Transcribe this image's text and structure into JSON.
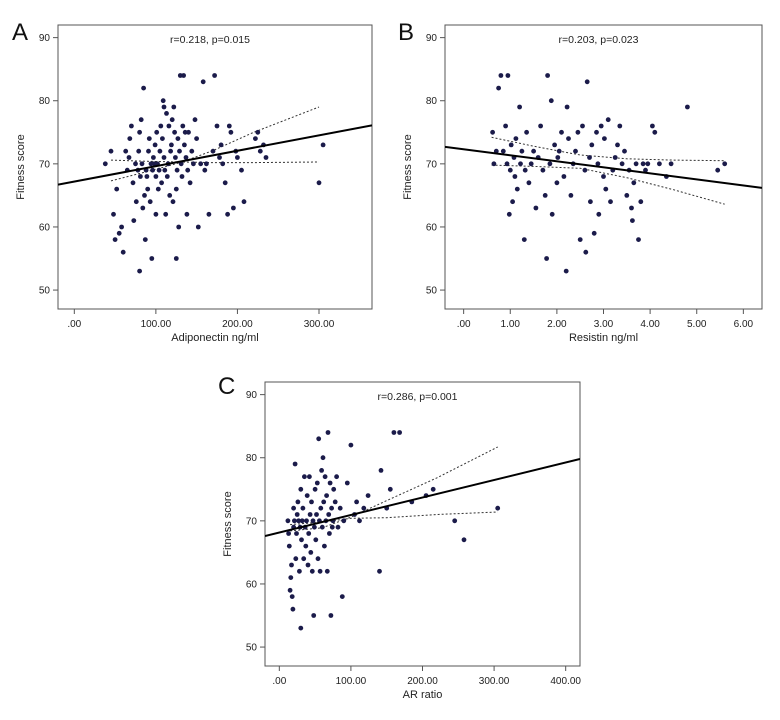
{
  "chart_data": [
    {
      "type": "scatter",
      "panel": "A",
      "title": "",
      "annotation": "r=0.218, p=0.015",
      "xlabel": "Adiponectin ng/ml",
      "ylabel": "Fitness score",
      "xlim": [
        -20,
        365
      ],
      "ylim": [
        47,
        92
      ],
      "xticks": [
        0,
        100,
        200,
        300
      ],
      "xtick_labels": [
        ".00",
        "100.00",
        "200.00",
        "300.00"
      ],
      "yticks": [
        50,
        60,
        70,
        80,
        90
      ],
      "ytick_labels": [
        "50",
        "60",
        "70",
        "80",
        "90"
      ],
      "fit_line": [
        [
          -20,
          66.7
        ],
        [
          365,
          76.1
        ]
      ],
      "ci_upper": [
        [
          45,
          67.3
        ],
        [
          90,
          68.8
        ],
        [
          130,
          70.2
        ],
        [
          170,
          72.1
        ],
        [
          220,
          75.0
        ],
        [
          300,
          79.0
        ]
      ],
      "ci_lower": [
        [
          45,
          70.6
        ],
        [
          90,
          70.4
        ],
        [
          130,
          70.3
        ],
        [
          170,
          70.2
        ],
        [
          220,
          70.2
        ],
        [
          300,
          70.3
        ]
      ],
      "points": [
        [
          38,
          70
        ],
        [
          45,
          72
        ],
        [
          48,
          62
        ],
        [
          50,
          58
        ],
        [
          52,
          66
        ],
        [
          55,
          59
        ],
        [
          58,
          60
        ],
        [
          60,
          56
        ],
        [
          63,
          72
        ],
        [
          65,
          69
        ],
        [
          67,
          71
        ],
        [
          68,
          74
        ],
        [
          70,
          76
        ],
        [
          72,
          67
        ],
        [
          73,
          61
        ],
        [
          75,
          70
        ],
        [
          76,
          64
        ],
        [
          78,
          69
        ],
        [
          79,
          72
        ],
        [
          80,
          75
        ],
        [
          80,
          53
        ],
        [
          81,
          68
        ],
        [
          82,
          77
        ],
        [
          83,
          70
        ],
        [
          84,
          63
        ],
        [
          85,
          82
        ],
        [
          86,
          65
        ],
        [
          87,
          58
        ],
        [
          88,
          69
        ],
        [
          89,
          68
        ],
        [
          90,
          66
        ],
        [
          91,
          72
        ],
        [
          92,
          74
        ],
        [
          93,
          64
        ],
        [
          94,
          70
        ],
        [
          95,
          55
        ],
        [
          96,
          69
        ],
        [
          97,
          71
        ],
        [
          98,
          70
        ],
        [
          99,
          73
        ],
        [
          100,
          62
        ],
        [
          100,
          68
        ],
        [
          101,
          75
        ],
        [
          102,
          70
        ],
        [
          103,
          66
        ],
        [
          104,
          69
        ],
        [
          105,
          72
        ],
        [
          106,
          76
        ],
        [
          107,
          67
        ],
        [
          108,
          74
        ],
        [
          109,
          80
        ],
        [
          110,
          79
        ],
        [
          110,
          71
        ],
        [
          111,
          69
        ],
        [
          112,
          62
        ],
        [
          113,
          78
        ],
        [
          114,
          68
        ],
        [
          115,
          70
        ],
        [
          116,
          76
        ],
        [
          117,
          65
        ],
        [
          118,
          72
        ],
        [
          119,
          73
        ],
        [
          120,
          77
        ],
        [
          121,
          64
        ],
        [
          122,
          79
        ],
        [
          123,
          75
        ],
        [
          124,
          71
        ],
        [
          125,
          66
        ],
        [
          125,
          55
        ],
        [
          126,
          69
        ],
        [
          127,
          74
        ],
        [
          128,
          60
        ],
        [
          129,
          72
        ],
        [
          130,
          84
        ],
        [
          131,
          70
        ],
        [
          132,
          68
        ],
        [
          133,
          76
        ],
        [
          134,
          84
        ],
        [
          135,
          73
        ],
        [
          136,
          75
        ],
        [
          137,
          71
        ],
        [
          138,
          62
        ],
        [
          139,
          69
        ],
        [
          140,
          75
        ],
        [
          142,
          67
        ],
        [
          144,
          72
        ],
        [
          146,
          70
        ],
        [
          148,
          77
        ],
        [
          150,
          74
        ],
        [
          152,
          60
        ],
        [
          155,
          70
        ],
        [
          158,
          83
        ],
        [
          160,
          69
        ],
        [
          162,
          70
        ],
        [
          165,
          62
        ],
        [
          170,
          72
        ],
        [
          172,
          84
        ],
        [
          175,
          76
        ],
        [
          178,
          71
        ],
        [
          180,
          73
        ],
        [
          182,
          70
        ],
        [
          185,
          67
        ],
        [
          188,
          62
        ],
        [
          190,
          76
        ],
        [
          192,
          75
        ],
        [
          195,
          63
        ],
        [
          198,
          72
        ],
        [
          200,
          71
        ],
        [
          205,
          69
        ],
        [
          208,
          64
        ],
        [
          222,
          74
        ],
        [
          225,
          75
        ],
        [
          228,
          72
        ],
        [
          232,
          73
        ],
        [
          235,
          71
        ],
        [
          300,
          67
        ],
        [
          305,
          73
        ]
      ]
    },
    {
      "type": "scatter",
      "panel": "B",
      "title": "",
      "annotation": "r=0.203, p=0.023",
      "xlabel": "Resistin ng/ml",
      "ylabel": "Fitness score",
      "xlim": [
        -0.4,
        6.4
      ],
      "ylim": [
        47,
        92
      ],
      "xticks": [
        0,
        1,
        2,
        3,
        4,
        5,
        6
      ],
      "xtick_labels": [
        ".00",
        "1.00",
        "2.00",
        "3.00",
        "4.00",
        "5.00",
        "6.00"
      ],
      "yticks": [
        50,
        60,
        70,
        80,
        90
      ],
      "ytick_labels": [
        "50",
        "60",
        "70",
        "80",
        "90"
      ],
      "fit_line": [
        [
          -0.4,
          72.7
        ],
        [
          6.4,
          66.2
        ]
      ],
      "ci_upper": [
        [
          0.6,
          74.2
        ],
        [
          1.5,
          72.8
        ],
        [
          2.5,
          71.4
        ],
        [
          3.5,
          70.8
        ],
        [
          4.5,
          70.6
        ],
        [
          5.6,
          70.5
        ]
      ],
      "ci_lower": [
        [
          0.6,
          69.8
        ],
        [
          1.5,
          69.6
        ],
        [
          2.5,
          69.3
        ],
        [
          3.5,
          67.8
        ],
        [
          4.5,
          65.9
        ],
        [
          5.6,
          63.6
        ]
      ],
      "points": [
        [
          0.62,
          75
        ],
        [
          0.65,
          70
        ],
        [
          0.7,
          72
        ],
        [
          0.75,
          82
        ],
        [
          0.8,
          84
        ],
        [
          0.85,
          72
        ],
        [
          0.9,
          76
        ],
        [
          0.93,
          70
        ],
        [
          0.95,
          84
        ],
        [
          0.98,
          62
        ],
        [
          1.0,
          69
        ],
        [
          1.02,
          73
        ],
        [
          1.05,
          64
        ],
        [
          1.08,
          71
        ],
        [
          1.1,
          68
        ],
        [
          1.12,
          74
        ],
        [
          1.15,
          66
        ],
        [
          1.2,
          79
        ],
        [
          1.22,
          70
        ],
        [
          1.25,
          72
        ],
        [
          1.3,
          58
        ],
        [
          1.32,
          69
        ],
        [
          1.35,
          75
        ],
        [
          1.4,
          67
        ],
        [
          1.45,
          70
        ],
        [
          1.5,
          72
        ],
        [
          1.55,
          63
        ],
        [
          1.6,
          71
        ],
        [
          1.65,
          76
        ],
        [
          1.7,
          69
        ],
        [
          1.75,
          65
        ],
        [
          1.78,
          55
        ],
        [
          1.8,
          84
        ],
        [
          1.85,
          70
        ],
        [
          1.88,
          80
        ],
        [
          1.9,
          62
        ],
        [
          1.95,
          73
        ],
        [
          2.0,
          67
        ],
        [
          2.02,
          71
        ],
        [
          2.05,
          72
        ],
        [
          2.1,
          75
        ],
        [
          2.15,
          68
        ],
        [
          2.2,
          53
        ],
        [
          2.22,
          79
        ],
        [
          2.25,
          74
        ],
        [
          2.3,
          65
        ],
        [
          2.35,
          70
        ],
        [
          2.4,
          72
        ],
        [
          2.45,
          75
        ],
        [
          2.5,
          58
        ],
        [
          2.55,
          76
        ],
        [
          2.6,
          69
        ],
        [
          2.62,
          56
        ],
        [
          2.65,
          83
        ],
        [
          2.7,
          71
        ],
        [
          2.72,
          64
        ],
        [
          2.75,
          73
        ],
        [
          2.8,
          59
        ],
        [
          2.85,
          75
        ],
        [
          2.88,
          70
        ],
        [
          2.9,
          62
        ],
        [
          2.95,
          76
        ],
        [
          3.0,
          68
        ],
        [
          3.02,
          74
        ],
        [
          3.05,
          66
        ],
        [
          3.1,
          77
        ],
        [
          3.15,
          64
        ],
        [
          3.2,
          69
        ],
        [
          3.25,
          71
        ],
        [
          3.3,
          73
        ],
        [
          3.35,
          76
        ],
        [
          3.4,
          70
        ],
        [
          3.45,
          72
        ],
        [
          3.5,
          65
        ],
        [
          3.55,
          69
        ],
        [
          3.6,
          63
        ],
        [
          3.62,
          61
        ],
        [
          3.65,
          67
        ],
        [
          3.7,
          70
        ],
        [
          3.75,
          58
        ],
        [
          3.8,
          64
        ],
        [
          3.85,
          70
        ],
        [
          3.9,
          69
        ],
        [
          3.95,
          70
        ],
        [
          4.05,
          76
        ],
        [
          4.1,
          75
        ],
        [
          4.2,
          70
        ],
        [
          4.35,
          68
        ],
        [
          4.45,
          70
        ],
        [
          4.8,
          79
        ],
        [
          5.45,
          69
        ],
        [
          5.6,
          70
        ]
      ]
    },
    {
      "type": "scatter",
      "panel": "C",
      "title": "",
      "annotation": "r=0.286, p=0.001",
      "xlabel": "AR ratio",
      "ylabel": "Fitness score",
      "xlim": [
        -20,
        420
      ],
      "ylim": [
        47,
        92
      ],
      "xticks": [
        0,
        100,
        200,
        300,
        400
      ],
      "xtick_labels": [
        ".00",
        "100.00",
        "200.00",
        "300.00",
        "400.00"
      ],
      "yticks": [
        50,
        60,
        70,
        80,
        90
      ],
      "ytick_labels": [
        "50",
        "60",
        "70",
        "80",
        "90"
      ],
      "fit_line": [
        [
          -20,
          67.6
        ],
        [
          420,
          79.8
        ]
      ],
      "ci_upper": [
        [
          15,
          68.4
        ],
        [
          60,
          68.9
        ],
        [
          100,
          70.6
        ],
        [
          150,
          73.2
        ],
        [
          220,
          76.8
        ],
        [
          305,
          81.7
        ]
      ],
      "ci_lower": [
        [
          15,
          69.4
        ],
        [
          60,
          69.8
        ],
        [
          100,
          70.4
        ],
        [
          150,
          70.5
        ],
        [
          220,
          71.0
        ],
        [
          305,
          71.4
        ]
      ],
      "points": [
        [
          12,
          70
        ],
        [
          13,
          68
        ],
        [
          14,
          66
        ],
        [
          15,
          59
        ],
        [
          16,
          61
        ],
        [
          17,
          63
        ],
        [
          18,
          58
        ],
        [
          19,
          56
        ],
        [
          20,
          69
        ],
        [
          20,
          72
        ],
        [
          21,
          70
        ],
        [
          22,
          79
        ],
        [
          23,
          64
        ],
        [
          24,
          68
        ],
        [
          25,
          71
        ],
        [
          26,
          73
        ],
        [
          27,
          70
        ],
        [
          28,
          62
        ],
        [
          29,
          69
        ],
        [
          30,
          75
        ],
        [
          30,
          53
        ],
        [
          31,
          67
        ],
        [
          32,
          70
        ],
        [
          33,
          72
        ],
        [
          34,
          64
        ],
        [
          35,
          77
        ],
        [
          36,
          69
        ],
        [
          37,
          66
        ],
        [
          38,
          70
        ],
        [
          39,
          74
        ],
        [
          40,
          63
        ],
        [
          41,
          68
        ],
        [
          42,
          77
        ],
        [
          43,
          71
        ],
        [
          44,
          65
        ],
        [
          45,
          73
        ],
        [
          46,
          62
        ],
        [
          47,
          70
        ],
        [
          48,
          55
        ],
        [
          49,
          69
        ],
        [
          50,
          75
        ],
        [
          51,
          67
        ],
        [
          52,
          71
        ],
        [
          53,
          76
        ],
        [
          54,
          64
        ],
        [
          55,
          83
        ],
        [
          56,
          70
        ],
        [
          57,
          62
        ],
        [
          58,
          72
        ],
        [
          59,
          78
        ],
        [
          60,
          69
        ],
        [
          61,
          80
        ],
        [
          62,
          73
        ],
        [
          63,
          66
        ],
        [
          64,
          77
        ],
        [
          65,
          70
        ],
        [
          66,
          74
        ],
        [
          67,
          62
        ],
        [
          68,
          84
        ],
        [
          69,
          71
        ],
        [
          70,
          68
        ],
        [
          71,
          76
        ],
        [
          72,
          55
        ],
        [
          73,
          72
        ],
        [
          74,
          69
        ],
        [
          75,
          70
        ],
        [
          76,
          75
        ],
        [
          78,
          73
        ],
        [
          80,
          77
        ],
        [
          82,
          69
        ],
        [
          85,
          72
        ],
        [
          88,
          58
        ],
        [
          90,
          70
        ],
        [
          95,
          76
        ],
        [
          100,
          82
        ],
        [
          105,
          71
        ],
        [
          108,
          73
        ],
        [
          112,
          70
        ],
        [
          118,
          72
        ],
        [
          124,
          74
        ],
        [
          140,
          62
        ],
        [
          142,
          78
        ],
        [
          150,
          72
        ],
        [
          155,
          75
        ],
        [
          160,
          84
        ],
        [
          168,
          84
        ],
        [
          185,
          73
        ],
        [
          205,
          74
        ],
        [
          215,
          75
        ],
        [
          245,
          70
        ],
        [
          258,
          67
        ],
        [
          305,
          72
        ]
      ]
    }
  ],
  "panels": [
    {
      "letter": "A"
    },
    {
      "letter": "B"
    },
    {
      "letter": "C"
    }
  ]
}
